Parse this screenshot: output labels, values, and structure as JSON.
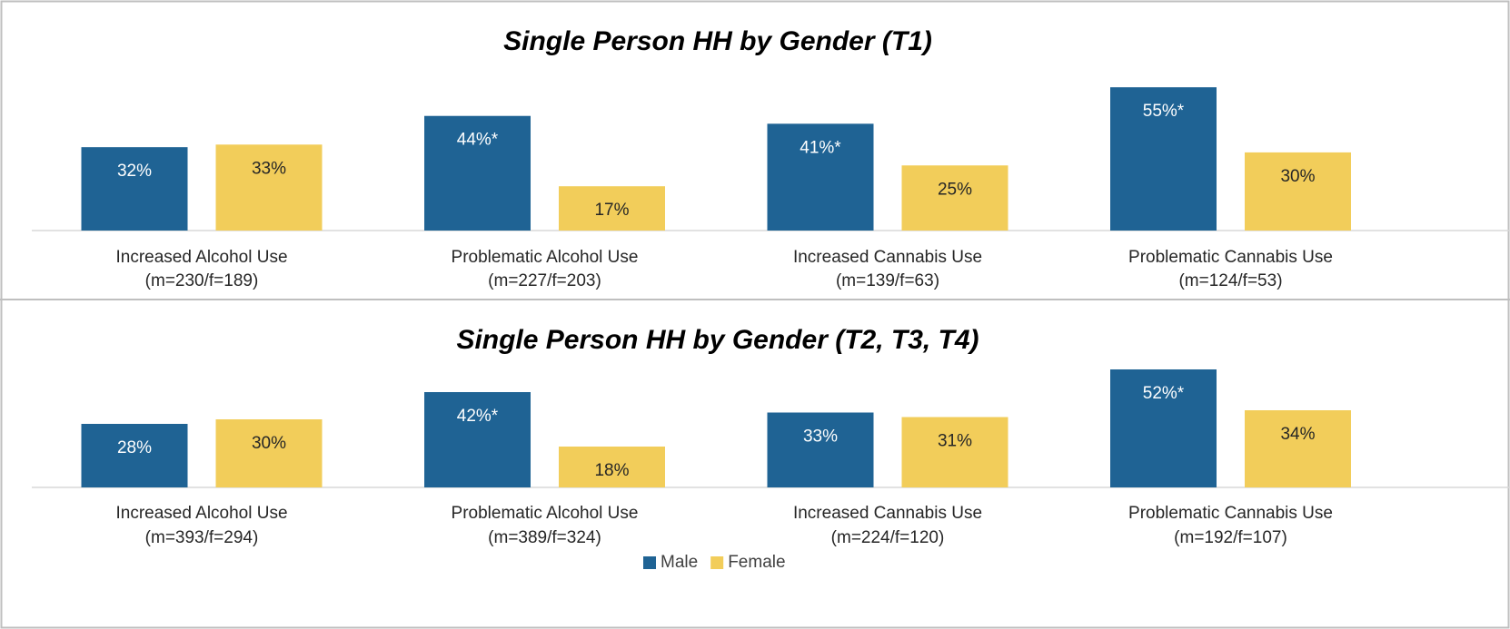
{
  "chart_data": [
    {
      "type": "bar",
      "title": "Single Person HH by Gender (T1)",
      "categories": [
        "Increased Alcohol Use",
        "Problematic Alcohol Use",
        "Increased Cannabis Use",
        "Problematic Cannabis Use"
      ],
      "category_notes": [
        "(m=230/f=189)",
        "(m=227/f=203)",
        "(m=139/f=63)",
        "(m=124/f=53)"
      ],
      "series": [
        {
          "color": "#1f6394",
          "values": [
            32,
            44,
            41,
            55
          ],
          "value_labels": [
            "32%",
            "44%*",
            "41%*",
            "55%*"
          ]
        },
        {
          "color": "#f2cd5a",
          "values": [
            33,
            17,
            25,
            30
          ],
          "value_labels": [
            "33%",
            "17%",
            "25%",
            "30%"
          ]
        }
      ]
    },
    {
      "type": "bar",
      "title": "Single Person HH by Gender (T2, T3, T4)",
      "categories": [
        "Increased Alcohol Use",
        "Problematic Alcohol Use",
        "Increased Cannabis Use",
        "Problematic Cannabis Use"
      ],
      "category_notes": [
        "(m=393/f=294)",
        "(m=389/f=324)",
        "(m=224/f=120)",
        "(m=192/f=107)"
      ],
      "series": [
        {
          "name": "Male",
          "color": "#1f6394",
          "values": [
            28,
            42,
            33,
            52
          ],
          "value_labels": [
            "28%",
            "42%*",
            "33%",
            "52%*"
          ]
        },
        {
          "name": "Female",
          "color": "#f2cd5a",
          "values": [
            30,
            18,
            31,
            34
          ],
          "value_labels": [
            "30%",
            "18%",
            "31%",
            "34%"
          ]
        }
      ],
      "legend": "bottom"
    }
  ]
}
